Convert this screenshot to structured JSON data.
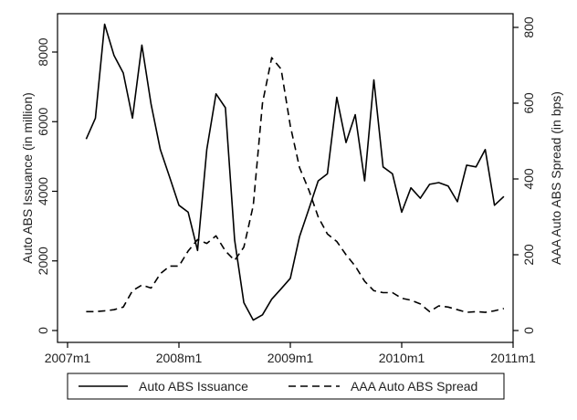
{
  "chart_data": {
    "type": "line",
    "title": "",
    "xlabel": "",
    "ylabel_left": "Auto ABS Issuance (in million)",
    "ylabel_right": "AAA Auto ABS Spread (in bps)",
    "xlim": [
      2007.0,
      2011.0
    ],
    "ylim_left": [
      0,
      9000
    ],
    "ylim_right": [
      0,
      810
    ],
    "x_ticks": [
      {
        "value": 2007.0,
        "label": "2007m1"
      },
      {
        "value": 2008.0,
        "label": "2008m1"
      },
      {
        "value": 2009.0,
        "label": "2009m1"
      },
      {
        "value": 2010.0,
        "label": "2010m1"
      },
      {
        "value": 2011.0,
        "label": "2011m1"
      }
    ],
    "y_ticks_left": [
      {
        "value": 0,
        "label": "0"
      },
      {
        "value": 2000,
        "label": "2000"
      },
      {
        "value": 4000,
        "label": "4000"
      },
      {
        "value": 6000,
        "label": "6000"
      },
      {
        "value": 8000,
        "label": "8000"
      }
    ],
    "y_ticks_right": [
      {
        "value": 0,
        "label": "0"
      },
      {
        "value": 200,
        "label": "200"
      },
      {
        "value": 400,
        "label": "400"
      },
      {
        "value": 600,
        "label": "600"
      },
      {
        "value": 800,
        "label": "800"
      }
    ],
    "grid": false,
    "legend_position": "bottom",
    "series": [
      {
        "name": "Auto ABS Issuance",
        "axis": "left",
        "style": "solid",
        "color": "#000000",
        "x": [
          2007.167,
          2007.25,
          2007.333,
          2007.417,
          2007.5,
          2007.583,
          2007.667,
          2007.75,
          2007.833,
          2007.917,
          2008.0,
          2008.083,
          2008.167,
          2008.25,
          2008.333,
          2008.417,
          2008.5,
          2008.583,
          2008.667,
          2008.75,
          2008.833,
          2008.917,
          2009.0,
          2009.083,
          2009.167,
          2009.25,
          2009.333,
          2009.417,
          2009.5,
          2009.583,
          2009.667,
          2009.75,
          2009.833,
          2009.917,
          2010.0,
          2010.083,
          2010.167,
          2010.25,
          2010.333,
          2010.417,
          2010.5,
          2010.583,
          2010.667,
          2010.75,
          2010.833,
          2010.917
        ],
        "values": [
          5500,
          6100,
          8800,
          7900,
          7400,
          6100,
          8200,
          6500,
          5200,
          4400,
          3600,
          3400,
          2300,
          5200,
          6800,
          6400,
          2600,
          800,
          300,
          450,
          900,
          1200,
          1500,
          2700,
          3500,
          4300,
          4500,
          6700,
          5400,
          6200,
          4300,
          7200,
          4700,
          4500,
          3400,
          4100,
          3800,
          4200,
          4250,
          4150,
          3700,
          4750,
          4700,
          5200,
          3600,
          3850
        ]
      },
      {
        "name": "AAA Auto ABS Spread",
        "axis": "right",
        "style": "dashed",
        "color": "#000000",
        "x": [
          2007.167,
          2007.25,
          2007.333,
          2007.417,
          2007.5,
          2007.583,
          2007.667,
          2007.75,
          2007.833,
          2007.917,
          2008.0,
          2008.083,
          2008.167,
          2008.25,
          2008.333,
          2008.417,
          2008.5,
          2008.583,
          2008.667,
          2008.75,
          2008.833,
          2008.917,
          2009.0,
          2009.083,
          2009.167,
          2009.25,
          2009.333,
          2009.417,
          2009.5,
          2009.583,
          2009.667,
          2009.75,
          2009.833,
          2009.917,
          2010.0,
          2010.083,
          2010.167,
          2010.25,
          2010.333,
          2010.417,
          2010.5,
          2010.583,
          2010.667,
          2010.75,
          2010.833,
          2010.917
        ],
        "values": [
          50,
          50,
          52,
          55,
          62,
          105,
          120,
          112,
          150,
          170,
          170,
          210,
          240,
          230,
          250,
          210,
          185,
          220,
          330,
          600,
          720,
          690,
          540,
          430,
          370,
          300,
          255,
          235,
          200,
          170,
          130,
          105,
          100,
          100,
          85,
          80,
          70,
          50,
          65,
          62,
          55,
          48,
          50,
          48,
          52,
          58
        ]
      }
    ]
  }
}
